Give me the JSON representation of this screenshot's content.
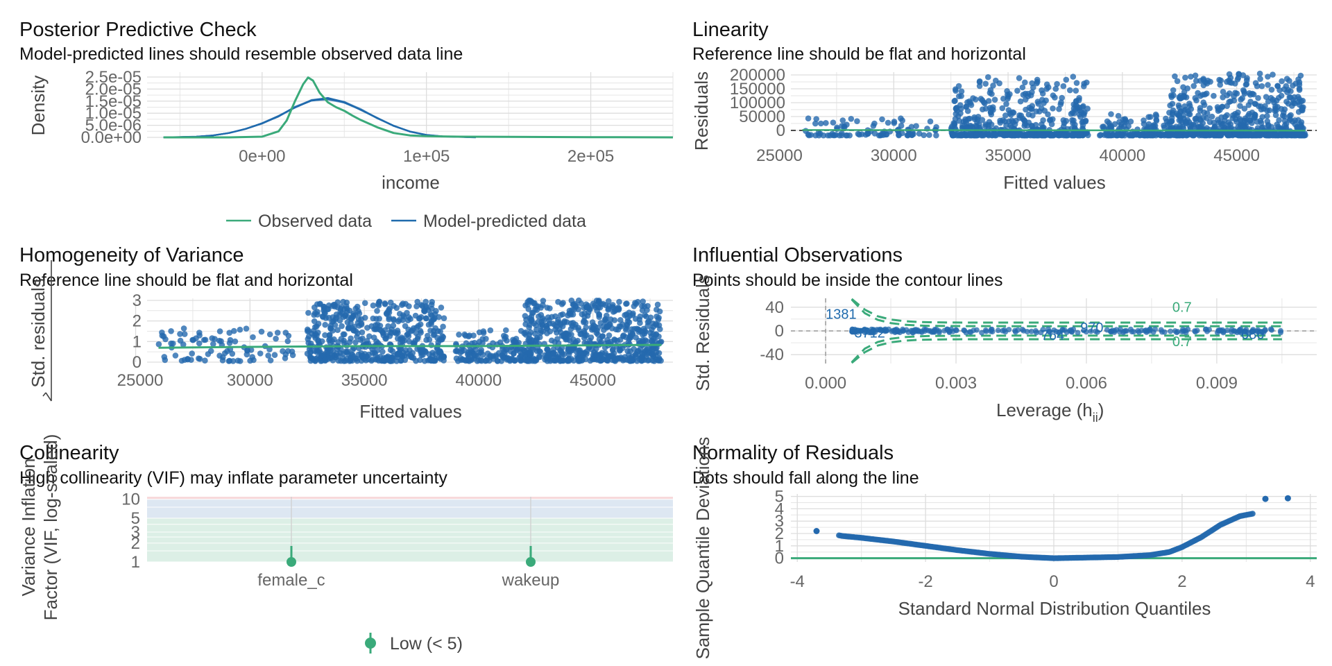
{
  "colors": {
    "observed": "#3aaa7a",
    "predicted": "#1f6aad",
    "point": "#2469ae",
    "reference": "#333333",
    "contour": "#3aaa7a",
    "low_band": "#dcefe6",
    "moderate_band": "#dde7f2",
    "high_band": "#f7d9db"
  },
  "chart_data": [
    {
      "panel": "ppc",
      "type": "line",
      "title": "Posterior Predictive Check",
      "subtitle": "Model-predicted lines should resemble observed data line",
      "xlabel": "income",
      "ylabel": "Density",
      "xlim": [
        -70000,
        250000
      ],
      "ylim": [
        0,
        2.7e-05
      ],
      "x_ticks": [
        0,
        100000,
        200000
      ],
      "x_tick_labels": [
        "0e+00",
        "1e+05",
        "2e+05"
      ],
      "y_ticks": [
        0,
        5e-06,
        1e-05,
        1.5e-05,
        2e-05,
        2.5e-05
      ],
      "y_tick_labels": [
        "0.0e+00",
        "5.0e-06",
        "1.0e-05",
        "1.5e-05",
        "2.0e-05",
        "2.5e-05"
      ],
      "legend": [
        "Observed data",
        "Model-predicted data"
      ],
      "legend_position": "bottom",
      "series": [
        {
          "name": "Observed data",
          "x": [
            -60000,
            -20000,
            0,
            10000,
            15000,
            20000,
            25000,
            28000,
            31000,
            35000,
            40000,
            45000,
            50000,
            55000,
            60000,
            70000,
            80000,
            90000,
            100000,
            120000,
            150000,
            200000,
            250000
          ],
          "values": [
            0,
            0,
            3e-07,
            2.5e-06,
            7e-06,
            1.5e-05,
            2.2e-05,
            2.48e-05,
            2.35e-05,
            1.85e-05,
            1.45e-05,
            1.25e-05,
            1.1e-05,
            9e-06,
            7.2e-06,
            4.2e-06,
            1.8e-06,
            8e-07,
            5e-07,
            3e-07,
            2e-07,
            1e-07,
            0
          ]
        },
        {
          "name": "Model-predicted data",
          "x": [
            -60000,
            -40000,
            -30000,
            -20000,
            -10000,
            0,
            10000,
            20000,
            30000,
            40000,
            50000,
            60000,
            70000,
            80000,
            90000,
            100000,
            110000,
            130000
          ],
          "values": [
            0,
            3e-07,
            8e-07,
            1.8e-06,
            3.5e-06,
            5.8e-06,
            8.8e-06,
            1.25e-05,
            1.52e-05,
            1.6e-05,
            1.45e-05,
            1.15e-05,
            8e-06,
            4.8e-06,
            2.4e-06,
            1e-06,
            4e-07,
            0
          ]
        }
      ]
    },
    {
      "panel": "linearity",
      "type": "scatter",
      "title": "Linearity",
      "subtitle": "Reference line should be flat and horizontal",
      "xlabel": "Fitted values",
      "ylabel": "Residuals",
      "xlim": [
        25500,
        48500
      ],
      "ylim": [
        -20000,
        210000
      ],
      "x_ticks": [
        25000,
        30000,
        35000,
        40000,
        45000
      ],
      "y_ticks": [
        0,
        50000,
        100000,
        150000,
        200000
      ],
      "y_tick_labels": [
        "0",
        "50000",
        "100000",
        "150000",
        "200000"
      ],
      "reference_y": 0,
      "clusters": [
        {
          "x_range": [
            26000,
            32000
          ],
          "n": 90,
          "res_max": 45000
        },
        {
          "x_range": [
            32500,
            38500
          ],
          "n": 520,
          "res_max": 195000
        },
        {
          "x_range": [
            39000,
            42000
          ],
          "n": 140,
          "res_max": 60000
        },
        {
          "x_range": [
            42000,
            48000
          ],
          "n": 620,
          "res_max": 205000
        }
      ]
    },
    {
      "panel": "homogeneity",
      "type": "scatter",
      "title": "Homogeneity of Variance",
      "subtitle": "Reference line should be flat and horizontal",
      "xlabel": "Fitted values",
      "ylabel": "Std. residuals",
      "xlim": [
        25500,
        48500
      ],
      "ylim": [
        0,
        3.1
      ],
      "x_ticks": [
        25000,
        30000,
        35000,
        40000,
        45000
      ],
      "y_ticks": [
        0,
        1,
        2,
        3
      ],
      "clusters": [
        {
          "x_range": [
            26000,
            32000
          ],
          "n": 90,
          "res_max": 1.6
        },
        {
          "x_range": [
            32500,
            38500
          ],
          "n": 520,
          "res_max": 2.9
        },
        {
          "x_range": [
            39000,
            42000
          ],
          "n": 140,
          "res_max": 1.5
        },
        {
          "x_range": [
            42000,
            48000
          ],
          "n": 620,
          "res_max": 2.95
        }
      ],
      "trend": {
        "x": [
          26000,
          30000,
          35000,
          40000,
          45000,
          48000
        ],
        "values": [
          0.7,
          0.74,
          0.78,
          0.78,
          0.82,
          0.84
        ]
      }
    },
    {
      "panel": "influential",
      "type": "scatter",
      "title": "Influential Observations",
      "subtitle": "Points should be inside the contour lines",
      "xlabel": "Leverage (h",
      "xlabel_sub": "ii",
      "xlabel_close": ")",
      "ylabel": "Std. Residuals",
      "xlim": [
        -0.0008,
        0.0113
      ],
      "ylim": [
        -55,
        55
      ],
      "x_ticks": [
        0,
        0.003,
        0.006,
        0.009
      ],
      "x_tick_labels": [
        "0.000",
        "0.003",
        "0.006",
        "0.009"
      ],
      "y_ticks": [
        -40,
        0,
        40
      ],
      "contour_label": "0.7",
      "labeled_points": [
        {
          "label": "1381",
          "x": 0.0,
          "y": 30
        },
        {
          "label": "3712",
          "x": 0.0005,
          "y": -2
        },
        {
          "label": "764",
          "x": 0.0048,
          "y": -6
        },
        {
          "label": "970",
          "x": 0.0057,
          "y": 7
        },
        {
          "label": "686",
          "x": 0.0094,
          "y": -4
        }
      ]
    },
    {
      "panel": "collinearity",
      "type": "scatter",
      "title": "Collinearity",
      "subtitle": "High collinearity (VIF) may inflate parameter uncertainty",
      "ylabel": "Variance Inflation",
      "ylabel_line2": "Factor (VIF, log-scaled)",
      "y_scale": "log",
      "y_ticks": [
        1,
        2,
        3,
        5,
        10
      ],
      "categories": [
        "female_c",
        "wakeup"
      ],
      "values": [
        1.0,
        1.0
      ],
      "ci_upper": [
        1.8,
        1.8
      ],
      "legend": [
        "Low (< 5)"
      ],
      "legend_position": "bottom"
    },
    {
      "panel": "normality",
      "type": "scatter",
      "title": "Normality of Residuals",
      "subtitle": "Dots should fall along the line",
      "xlabel": "Standard Normal Distribution Quantiles",
      "ylabel": "Sample Quantile Deviations",
      "xlim": [
        -4.1,
        4.1
      ],
      "ylim": [
        -0.3,
        5.2
      ],
      "x_ticks": [
        -4,
        -2,
        0,
        2,
        4
      ],
      "y_ticks": [
        0,
        1,
        2,
        3,
        4,
        5
      ],
      "reference_y": 0,
      "curve": {
        "x": [
          -3.7,
          -3.3,
          -3.0,
          -2.5,
          -2.0,
          -1.5,
          -1.0,
          -0.5,
          0,
          0.5,
          1.0,
          1.5,
          1.8,
          2.0,
          2.3,
          2.6,
          2.9,
          3.1,
          3.3,
          3.65
        ],
        "values": [
          2.2,
          1.8,
          1.65,
          1.35,
          1.0,
          0.65,
          0.35,
          0.12,
          0.0,
          0.05,
          0.1,
          0.25,
          0.5,
          0.9,
          1.7,
          2.7,
          3.4,
          3.6,
          4.8,
          4.85
        ]
      }
    }
  ]
}
